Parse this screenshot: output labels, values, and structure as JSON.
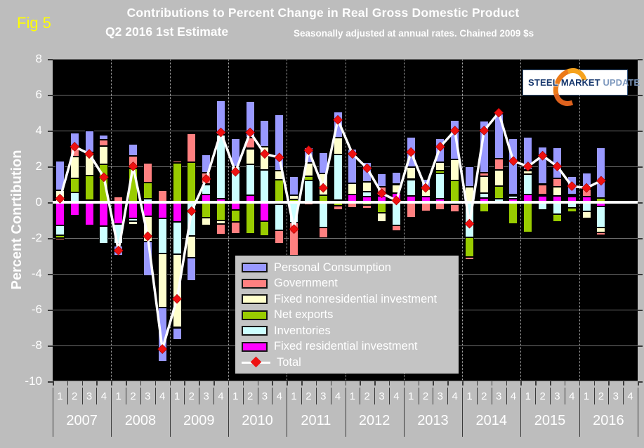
{
  "figure": {
    "fig_label": "Fig 5",
    "title_line1": "Contributions to Percent Change in Real Gross Domestic Product",
    "title_line2": "Q2 2016 1st  Estimate",
    "subtitle": "Seasonally adjusted at annual rates. Chained 2009 $s"
  },
  "y_axis": {
    "title": "Percent Conrtibution",
    "tick_values": [
      8,
      6,
      4,
      2,
      0,
      -2,
      -4,
      -6,
      -8,
      -10
    ],
    "max": 8,
    "min": -10
  },
  "x_axis": {
    "years": [
      "2007",
      "2008",
      "2009",
      "2010",
      "2011",
      "2012",
      "2013",
      "2014",
      "2015",
      "2016"
    ],
    "quarters": [
      "1",
      "2",
      "3",
      "4"
    ],
    "total_slots": 40
  },
  "logo": {
    "word1": "STEEL",
    "word2": "MARKET",
    "word3": "UPDATE"
  },
  "colors": {
    "background": "#BDBDBD",
    "plot_background": "#000000",
    "gridline": "#6F6F6F",
    "zero_line": "#FFFFFF",
    "total_line": "#FFFFFF",
    "total_marker": "#EE1111",
    "fig_label": "#FFFF00",
    "text": "#FFFFFF"
  },
  "chart_data": {
    "type": "bar",
    "subtype": "stacked-bars-with-total-line",
    "categories": [
      "2007 Q1",
      "2007 Q2",
      "2007 Q3",
      "2007 Q4",
      "2008 Q1",
      "2008 Q2",
      "2008 Q3",
      "2008 Q4",
      "2009 Q1",
      "2009 Q2",
      "2009 Q3",
      "2009 Q4",
      "2010 Q1",
      "2010 Q2",
      "2010 Q3",
      "2010 Q4",
      "2011 Q1",
      "2011 Q2",
      "2011 Q3",
      "2011 Q4",
      "2012 Q1",
      "2012 Q2",
      "2012 Q3",
      "2012 Q4",
      "2013 Q1",
      "2013 Q2",
      "2013 Q3",
      "2013 Q4",
      "2014 Q1",
      "2014 Q2",
      "2014 Q3",
      "2014 Q4",
      "2015 Q1",
      "2015 Q2",
      "2015 Q3",
      "2015 Q4",
      "2016 Q1",
      "2016 Q2"
    ],
    "empty_trailing_slots": [
      "2016 Q3",
      "2016 Q4"
    ],
    "title": "Contributions to Percent Change in Real Gross Domestic Product",
    "xlabel": "",
    "ylabel": "Percent Conrtibution",
    "ylim": [
      -10,
      8
    ],
    "legend_position": "middle-left overlay box",
    "grid": "horizontal solid every 2, vertical dotted at year boundaries",
    "series": [
      {
        "name": "Personal Consumption",
        "color": "#9999FF",
        "values": [
          1.65,
          0.85,
          1.2,
          0.25,
          -0.55,
          0.65,
          -1.9,
          -3.0,
          -0.7,
          -1.3,
          1.0,
          1.95,
          1.55,
          2.05,
          1.5,
          3.15,
          1.05,
          0.85,
          1.2,
          1.45,
          1.95,
          1.1,
          0.75,
          0.7,
          1.7,
          0.55,
          1.3,
          2.2,
          1.15,
          2.9,
          2.5,
          3.1,
          1.85,
          2.1,
          1.7,
          1.0,
          0.9,
          2.83
        ]
      },
      {
        "name": "Government",
        "color": "#FF8080",
        "values": [
          -0.1,
          0.5,
          0.15,
          0.35,
          0.3,
          0.7,
          1.1,
          0.65,
          0.1,
          1.6,
          0.65,
          -0.6,
          -0.65,
          0.6,
          0.0,
          -0.75,
          -1.85,
          -0.15,
          -0.6,
          -0.25,
          -0.3,
          -0.2,
          0.3,
          -0.3,
          -0.85,
          -0.5,
          -0.45,
          -0.45,
          -0.15,
          0.2,
          0.65,
          -0.1,
          0.05,
          0.55,
          0.5,
          0.1,
          0.45,
          -0.16
        ]
      },
      {
        "name": "Fixed nonresidential investment",
        "color": "#FFFFCC",
        "values": [
          0.65,
          1.2,
          1.15,
          1.05,
          -0.1,
          -0.2,
          -1.4,
          -3.05,
          -4.1,
          -1.2,
          -0.45,
          -0.2,
          0.0,
          0.9,
          1.3,
          0.5,
          0.25,
          0.75,
          1.2,
          0.95,
          0.6,
          0.55,
          -0.5,
          0.5,
          0.65,
          0.45,
          0.5,
          1.2,
          0.85,
          0.95,
          0.9,
          0.1,
          0.2,
          0.1,
          0.5,
          0.05,
          -0.4,
          -0.28
        ]
      },
      {
        "name": "Net exports",
        "color": "#99CC00",
        "values": [
          -0.15,
          0.8,
          1.4,
          2.1,
          -0.05,
          1.9,
          0.9,
          0.0,
          2.2,
          2.25,
          -0.85,
          -1.0,
          -0.65,
          -1.75,
          -0.85,
          1.25,
          0.15,
          0.25,
          0.4,
          -0.2,
          0.0,
          -0.15,
          -0.6,
          0.0,
          0.05,
          0.0,
          0.15,
          1.2,
          -1.1,
          -0.55,
          0.7,
          -1.2,
          -1.7,
          -0.05,
          -0.45,
          -0.25,
          0.0,
          0.23
        ]
      },
      {
        "name": "Inventories",
        "color": "#CCFFFF",
        "values": [
          -0.55,
          0.55,
          0.1,
          -0.95,
          -1.1,
          -0.15,
          0.2,
          -1.95,
          -1.8,
          -1.9,
          0.55,
          3.55,
          2.0,
          1.7,
          1.8,
          -1.45,
          -1.1,
          1.15,
          -1.4,
          2.55,
          0.0,
          0.3,
          0.2,
          -1.3,
          0.9,
          0.0,
          1.4,
          0.0,
          -1.95,
          0.25,
          0.2,
          0.15,
          1.1,
          -0.45,
          -0.65,
          -0.3,
          -0.5,
          -1.16
        ]
      },
      {
        "name": "Fixed residential investment",
        "color": "#FF00FF",
        "values": [
          -1.3,
          -0.75,
          -1.3,
          -1.35,
          -1.2,
          -0.9,
          -0.8,
          -0.9,
          -1.1,
          0.0,
          0.45,
          0.2,
          -0.45,
          0.4,
          -1.05,
          -0.1,
          -0.05,
          0.05,
          0.0,
          0.1,
          0.45,
          0.3,
          0.35,
          0.5,
          0.35,
          0.3,
          0.2,
          -0.1,
          0.0,
          0.25,
          0.0,
          0.2,
          0.45,
          0.35,
          0.35,
          0.3,
          0.3,
          -0.24
        ]
      }
    ],
    "stack_order_from_axis": [
      "Fixed residential investment",
      "Inventories",
      "Net exports",
      "Fixed nonresidential investment",
      "Government",
      "Personal Consumption"
    ],
    "total": {
      "name": "Total",
      "line_color": "#FFFFFF",
      "marker": "diamond",
      "marker_color": "#EE1111",
      "values": [
        0.2,
        3.1,
        2.7,
        1.4,
        -2.7,
        2.0,
        -1.9,
        -8.2,
        -5.4,
        -0.5,
        1.3,
        3.9,
        1.7,
        3.9,
        2.7,
        2.5,
        -1.5,
        2.9,
        0.8,
        4.6,
        2.7,
        1.9,
        0.5,
        0.1,
        2.8,
        0.8,
        3.1,
        4.0,
        -1.2,
        4.0,
        5.0,
        2.3,
        2.0,
        2.6,
        2.0,
        0.9,
        0.8,
        1.2
      ]
    }
  }
}
